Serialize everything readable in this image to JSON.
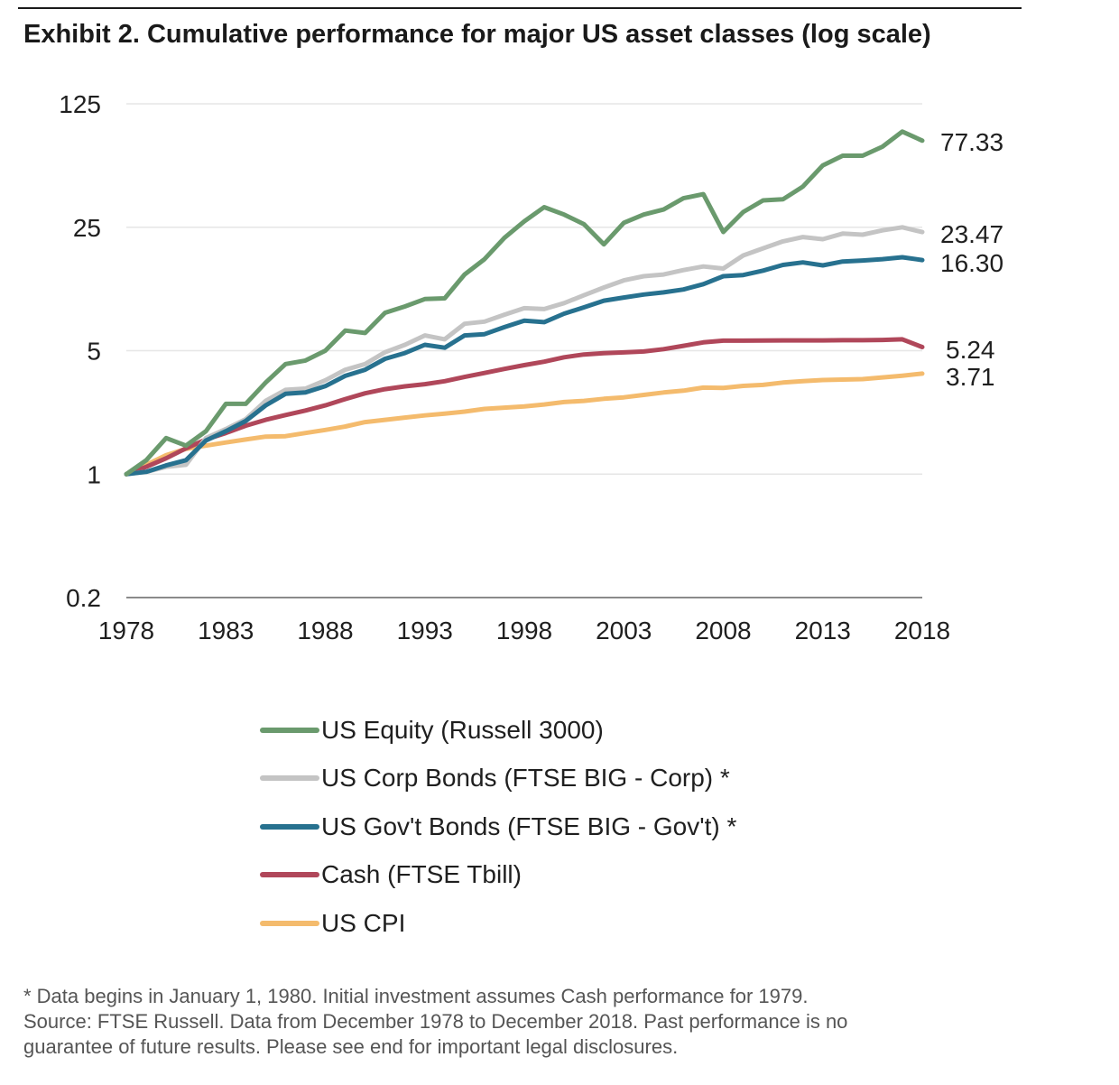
{
  "title": "Exhibit 2. Cumulative performance for major US asset classes (log scale)",
  "chart_data": {
    "type": "line",
    "title": "Exhibit 2. Cumulative performance for major US asset classes (log scale)",
    "y_scale": "log",
    "ylim": [
      0.2,
      125
    ],
    "y_ticks": [
      "125",
      "25",
      "5",
      "1",
      "0.2"
    ],
    "y_tick_values": [
      125,
      25,
      5,
      1,
      0.2
    ],
    "xlim": [
      1978,
      2018
    ],
    "x_ticks": [
      "1978",
      "1983",
      "1988",
      "1993",
      "1998",
      "2003",
      "2008",
      "2013",
      "2018"
    ],
    "x_tick_values": [
      1978,
      1983,
      1988,
      1993,
      1998,
      2003,
      2008,
      2013,
      2018
    ],
    "grid": "horizontal",
    "legend_position": "bottom",
    "series": [
      {
        "name": "US Equity (Russell 3000)",
        "color": "#6a9a6d",
        "end_label": "77.33",
        "points": [
          [
            1978,
            1.0
          ],
          [
            1979,
            1.2
          ],
          [
            1980,
            1.6
          ],
          [
            1981,
            1.45
          ],
          [
            1982,
            1.75
          ],
          [
            1983,
            2.5
          ],
          [
            1984,
            2.5
          ],
          [
            1985,
            3.3
          ],
          [
            1986,
            4.2
          ],
          [
            1987,
            4.4
          ],
          [
            1988,
            5.0
          ],
          [
            1989,
            6.5
          ],
          [
            1990,
            6.3
          ],
          [
            1991,
            8.2
          ],
          [
            1992,
            8.9
          ],
          [
            1993,
            9.8
          ],
          [
            1994,
            9.9
          ],
          [
            1995,
            13.5
          ],
          [
            1996,
            16.5
          ],
          [
            1997,
            21.8
          ],
          [
            1998,
            27.0
          ],
          [
            1999,
            32.5
          ],
          [
            2000,
            29.5
          ],
          [
            2001,
            26.0
          ],
          [
            2002,
            20.0
          ],
          [
            2003,
            26.5
          ],
          [
            2004,
            29.5
          ],
          [
            2005,
            31.5
          ],
          [
            2006,
            36.5
          ],
          [
            2007,
            38.5
          ],
          [
            2008,
            23.5
          ],
          [
            2009,
            30.5
          ],
          [
            2010,
            35.5
          ],
          [
            2011,
            36.0
          ],
          [
            2012,
            42.5
          ],
          [
            2013,
            56.0
          ],
          [
            2014,
            63.5
          ],
          [
            2015,
            63.5
          ],
          [
            2016,
            71.5
          ],
          [
            2017,
            87.0
          ],
          [
            2018,
            77.33
          ]
        ]
      },
      {
        "name": "US Corp Bonds (FTSE BIG - Corp) *",
        "color": "#c4c4c4",
        "end_label": "23.47",
        "points": [
          [
            1978,
            1.0
          ],
          [
            1979,
            1.03
          ],
          [
            1980,
            1.1
          ],
          [
            1981,
            1.13
          ],
          [
            1982,
            1.6
          ],
          [
            1983,
            1.8
          ],
          [
            1984,
            2.05
          ],
          [
            1985,
            2.6
          ],
          [
            1986,
            3.0
          ],
          [
            1987,
            3.05
          ],
          [
            1988,
            3.4
          ],
          [
            1989,
            3.9
          ],
          [
            1990,
            4.2
          ],
          [
            1991,
            4.9
          ],
          [
            1992,
            5.4
          ],
          [
            1993,
            6.1
          ],
          [
            1994,
            5.8
          ],
          [
            1995,
            7.1
          ],
          [
            1996,
            7.3
          ],
          [
            1997,
            8.0
          ],
          [
            1998,
            8.7
          ],
          [
            1999,
            8.6
          ],
          [
            2000,
            9.3
          ],
          [
            2001,
            10.3
          ],
          [
            2002,
            11.4
          ],
          [
            2003,
            12.5
          ],
          [
            2004,
            13.2
          ],
          [
            2005,
            13.5
          ],
          [
            2006,
            14.3
          ],
          [
            2007,
            15.0
          ],
          [
            2008,
            14.6
          ],
          [
            2009,
            17.3
          ],
          [
            2010,
            19.0
          ],
          [
            2011,
            20.8
          ],
          [
            2012,
            22.0
          ],
          [
            2013,
            21.4
          ],
          [
            2014,
            23.0
          ],
          [
            2015,
            22.7
          ],
          [
            2016,
            24.0
          ],
          [
            2017,
            25.0
          ],
          [
            2018,
            23.47
          ]
        ]
      },
      {
        "name": "US Gov't Bonds (FTSE BIG - Gov't) *",
        "color": "#27718f",
        "end_label": "16.30",
        "points": [
          [
            1978,
            1.0
          ],
          [
            1979,
            1.03
          ],
          [
            1980,
            1.12
          ],
          [
            1981,
            1.2
          ],
          [
            1982,
            1.55
          ],
          [
            1983,
            1.75
          ],
          [
            1984,
            2.0
          ],
          [
            1985,
            2.45
          ],
          [
            1986,
            2.85
          ],
          [
            1987,
            2.9
          ],
          [
            1988,
            3.15
          ],
          [
            1989,
            3.6
          ],
          [
            1990,
            3.9
          ],
          [
            1991,
            4.5
          ],
          [
            1992,
            4.85
          ],
          [
            1993,
            5.4
          ],
          [
            1994,
            5.2
          ],
          [
            1995,
            6.1
          ],
          [
            1996,
            6.2
          ],
          [
            1997,
            6.8
          ],
          [
            1998,
            7.4
          ],
          [
            1999,
            7.25
          ],
          [
            2000,
            8.1
          ],
          [
            2001,
            8.8
          ],
          [
            2002,
            9.6
          ],
          [
            2003,
            10.0
          ],
          [
            2004,
            10.4
          ],
          [
            2005,
            10.7
          ],
          [
            2006,
            11.1
          ],
          [
            2007,
            11.9
          ],
          [
            2008,
            13.2
          ],
          [
            2009,
            13.4
          ],
          [
            2010,
            14.2
          ],
          [
            2011,
            15.3
          ],
          [
            2012,
            15.8
          ],
          [
            2013,
            15.2
          ],
          [
            2014,
            16.0
          ],
          [
            2015,
            16.2
          ],
          [
            2016,
            16.5
          ],
          [
            2017,
            16.9
          ],
          [
            2018,
            16.3
          ]
        ]
      },
      {
        "name": "Cash (FTSE Tbill)",
        "color": "#b0475a",
        "end_label": "5.24",
        "points": [
          [
            1978,
            1.0
          ],
          [
            1979,
            1.1
          ],
          [
            1980,
            1.23
          ],
          [
            1981,
            1.4
          ],
          [
            1982,
            1.57
          ],
          [
            1983,
            1.71
          ],
          [
            1984,
            1.88
          ],
          [
            1985,
            2.03
          ],
          [
            1986,
            2.16
          ],
          [
            1987,
            2.29
          ],
          [
            1988,
            2.45
          ],
          [
            1989,
            2.66
          ],
          [
            1990,
            2.87
          ],
          [
            1991,
            3.03
          ],
          [
            1992,
            3.14
          ],
          [
            1993,
            3.23
          ],
          [
            1994,
            3.36
          ],
          [
            1995,
            3.55
          ],
          [
            1996,
            3.74
          ],
          [
            1997,
            3.94
          ],
          [
            1998,
            4.14
          ],
          [
            1999,
            4.33
          ],
          [
            2000,
            4.59
          ],
          [
            2001,
            4.76
          ],
          [
            2002,
            4.84
          ],
          [
            2003,
            4.89
          ],
          [
            2004,
            4.95
          ],
          [
            2005,
            5.1
          ],
          [
            2006,
            5.33
          ],
          [
            2007,
            5.57
          ],
          [
            2008,
            5.7
          ],
          [
            2009,
            5.7
          ],
          [
            2010,
            5.71
          ],
          [
            2011,
            5.72
          ],
          [
            2012,
            5.72
          ],
          [
            2013,
            5.72
          ],
          [
            2014,
            5.73
          ],
          [
            2015,
            5.73
          ],
          [
            2016,
            5.75
          ],
          [
            2017,
            5.8
          ],
          [
            2018,
            5.24
          ]
        ]
      },
      {
        "name": "US CPI",
        "color": "#f4bb6d",
        "end_label": "3.71",
        "points": [
          [
            1978,
            1.0
          ],
          [
            1979,
            1.13
          ],
          [
            1980,
            1.28
          ],
          [
            1981,
            1.39
          ],
          [
            1982,
            1.45
          ],
          [
            1983,
            1.51
          ],
          [
            1984,
            1.57
          ],
          [
            1985,
            1.63
          ],
          [
            1986,
            1.64
          ],
          [
            1987,
            1.71
          ],
          [
            1988,
            1.78
          ],
          [
            1989,
            1.86
          ],
          [
            1990,
            1.97
          ],
          [
            1991,
            2.03
          ],
          [
            1992,
            2.09
          ],
          [
            1993,
            2.15
          ],
          [
            1994,
            2.2
          ],
          [
            1995,
            2.26
          ],
          [
            1996,
            2.34
          ],
          [
            1997,
            2.38
          ],
          [
            1998,
            2.42
          ],
          [
            1999,
            2.48
          ],
          [
            2000,
            2.56
          ],
          [
            2001,
            2.6
          ],
          [
            2002,
            2.67
          ],
          [
            2003,
            2.72
          ],
          [
            2004,
            2.81
          ],
          [
            2005,
            2.9
          ],
          [
            2006,
            2.97
          ],
          [
            2007,
            3.09
          ],
          [
            2008,
            3.08
          ],
          [
            2009,
            3.16
          ],
          [
            2010,
            3.2
          ],
          [
            2011,
            3.3
          ],
          [
            2012,
            3.36
          ],
          [
            2013,
            3.41
          ],
          [
            2014,
            3.43
          ],
          [
            2015,
            3.45
          ],
          [
            2016,
            3.53
          ],
          [
            2017,
            3.61
          ],
          [
            2018,
            3.71
          ]
        ]
      }
    ]
  },
  "legend": [
    {
      "label": "US Equity (Russell 3000)",
      "color": "#6a9a6d"
    },
    {
      "label": "US Corp Bonds (FTSE BIG - Corp) *",
      "color": "#c4c4c4"
    },
    {
      "label": "US Gov't Bonds (FTSE BIG - Gov't) *",
      "color": "#27718f"
    },
    {
      "label": "Cash (FTSE Tbill)",
      "color": "#b0475a"
    },
    {
      "label": "US CPI",
      "color": "#f4bb6d"
    }
  ],
  "footnote": {
    "line1": "* Data begins in January 1, 1980. Initial investment assumes Cash performance for 1979.",
    "line2": "Source: FTSE Russell. Data from December 1978 to December 2018. Past performance is no",
    "line3": "guarantee of future results. Please see end for important legal disclosures."
  }
}
